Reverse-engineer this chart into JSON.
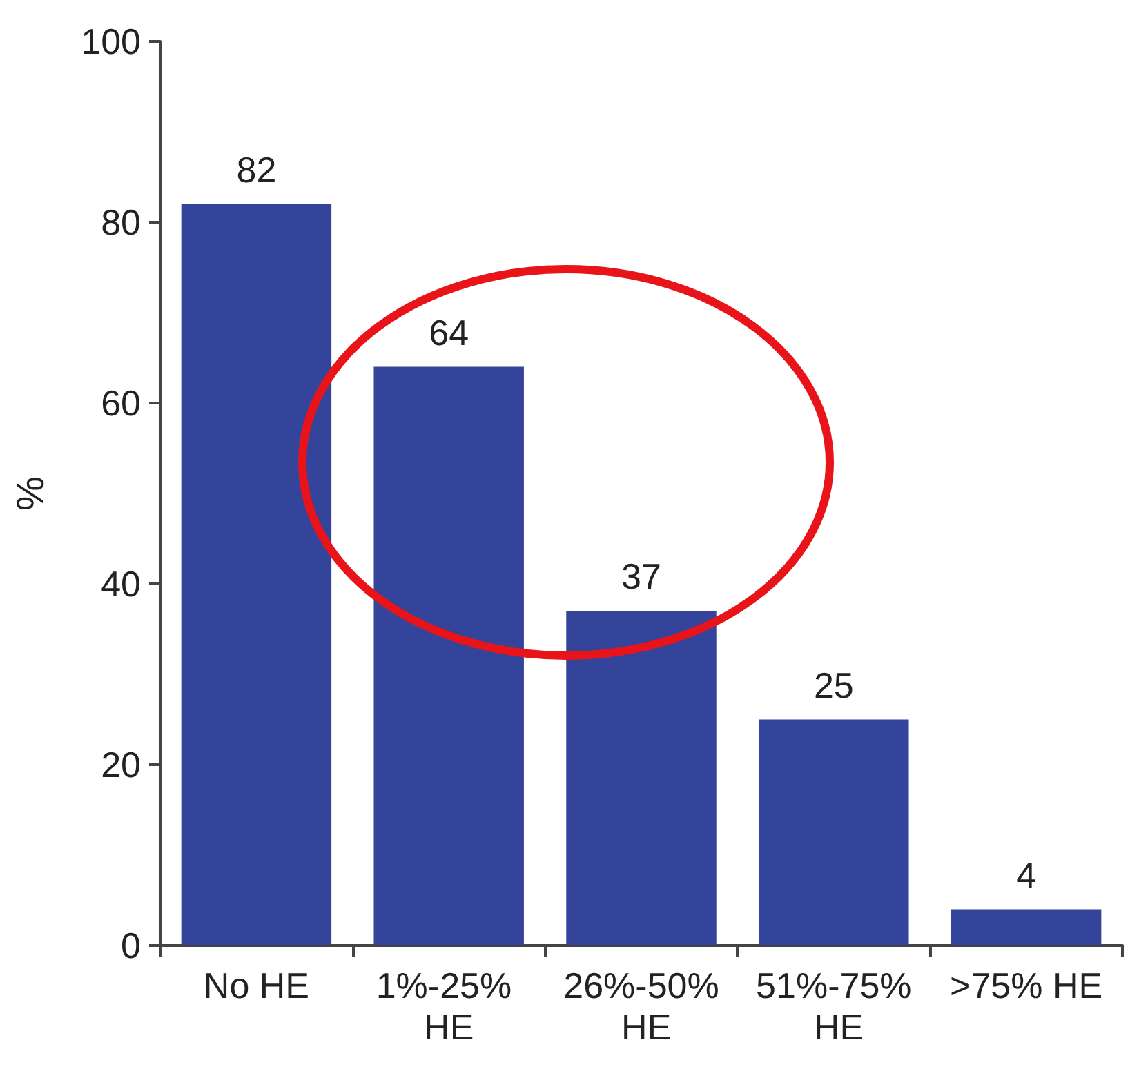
{
  "chart_data": {
    "type": "bar",
    "ylabel": "%",
    "categories": [
      "No HE",
      "1%-25% HE",
      "26%-50% HE",
      "51%-75% HE",
      ">75% HE"
    ],
    "values": [
      82,
      64,
      37,
      25,
      4
    ],
    "color": "#33449a",
    "data_labels": true,
    "ylim": [
      0,
      100
    ],
    "yticks": [
      0,
      20,
      40,
      60,
      80,
      100
    ],
    "grid": false
  }
}
